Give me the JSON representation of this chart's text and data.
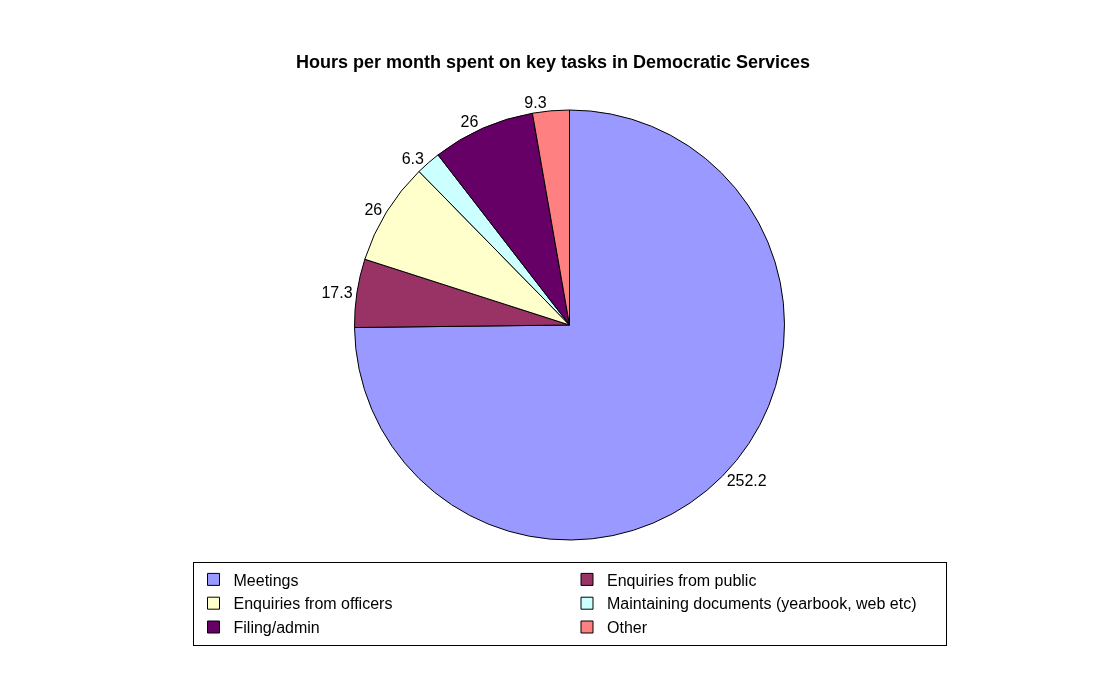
{
  "chart_data": {
    "type": "pie",
    "title": "Hours per month spent on key tasks in Democratic Services",
    "categories": [
      "Meetings",
      "Enquiries from public",
      "Enquiries from officers",
      "Maintaining documents (yearbook, web etc)",
      "Filing/admin",
      "Other"
    ],
    "values": [
      252.2,
      17.3,
      26,
      6.3,
      26,
      9.3
    ],
    "colors": [
      "#9999ff",
      "#993366",
      "#ffffcc",
      "#ccffff",
      "#660066",
      "#ff8080"
    ],
    "data_labels": true,
    "legend": "bottom"
  }
}
